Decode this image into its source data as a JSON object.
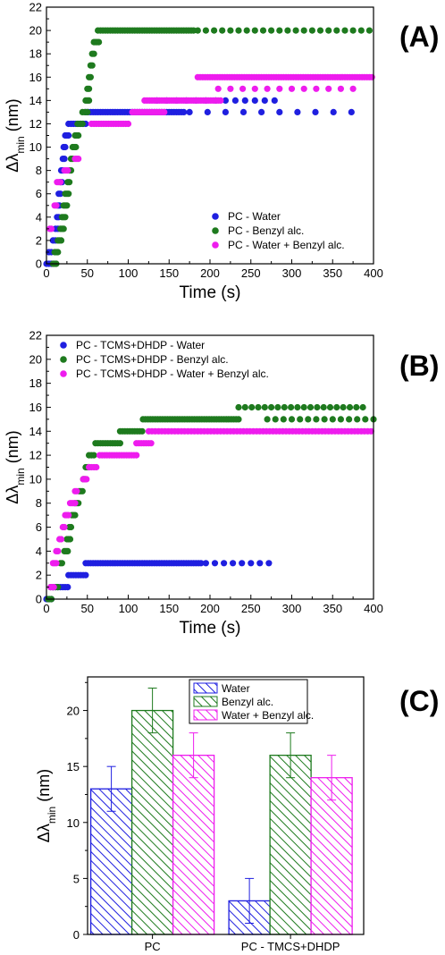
{
  "colors": {
    "water": "#1f1fe0",
    "benzyl": "#1e7a1e",
    "mix": "#ee1cee",
    "axis": "#000000"
  },
  "chart_data": [
    {
      "id": "A",
      "panel_label": "(A)",
      "type": "scatter",
      "xlabel": "Time (s)",
      "ylabel": "Δλmin (nm)",
      "xlim": [
        0,
        400
      ],
      "ylim": [
        0,
        22
      ],
      "xticks": [
        0,
        50,
        100,
        150,
        200,
        250,
        300,
        350,
        400
      ],
      "yticks": [
        0,
        2,
        4,
        6,
        8,
        10,
        12,
        14,
        16,
        18,
        20,
        22
      ],
      "legend_position": "bottom-right",
      "series": [
        {
          "name": "PC - Water",
          "color": "#1f1fe0",
          "segments": [
            {
              "y": 0,
              "x0": 0,
              "x1": 6,
              "step": 3
            },
            {
              "y": 1,
              "x0": 3,
              "x1": 8,
              "step": 3
            },
            {
              "y": 2,
              "x0": 8,
              "x1": 12,
              "step": 3
            },
            {
              "y": 3,
              "x0": 11,
              "x1": 14,
              "step": 3
            },
            {
              "y": 4,
              "x0": 13,
              "x1": 15,
              "step": 2
            },
            {
              "y": 5,
              "x0": 14,
              "x1": 16,
              "step": 2
            },
            {
              "y": 6,
              "x0": 15,
              "x1": 17,
              "step": 2
            },
            {
              "y": 7,
              "x0": 17,
              "x1": 19,
              "step": 2
            },
            {
              "y": 8,
              "x0": 18,
              "x1": 20,
              "step": 2
            },
            {
              "y": 9,
              "x0": 20,
              "x1": 22,
              "step": 2
            },
            {
              "y": 10,
              "x0": 21,
              "x1": 24,
              "step": 2
            },
            {
              "y": 11,
              "x0": 23,
              "x1": 27,
              "step": 2
            },
            {
              "y": 12,
              "x0": 27,
              "x1": 50,
              "step": 3
            },
            {
              "y": 13,
              "x0": 48,
              "x1": 170,
              "step": 3
            },
            {
              "y": 13,
              "x0": 175,
              "x1": 390,
              "step": 22
            },
            {
              "y": 14,
              "x0": 135,
              "x1": 285,
              "step": 12
            }
          ]
        },
        {
          "name": "PC - Benzyl alc.",
          "color": "#1e7a1e",
          "segments": [
            {
              "y": 0,
              "x0": 8,
              "x1": 12,
              "step": 2
            },
            {
              "y": 1,
              "x0": 10,
              "x1": 14,
              "step": 2
            },
            {
              "y": 2,
              "x0": 14,
              "x1": 18,
              "step": 2
            },
            {
              "y": 3,
              "x0": 17,
              "x1": 21,
              "step": 2
            },
            {
              "y": 4,
              "x0": 19,
              "x1": 23,
              "step": 2
            },
            {
              "y": 5,
              "x0": 21,
              "x1": 25,
              "step": 2
            },
            {
              "y": 6,
              "x0": 23,
              "x1": 27,
              "step": 2
            },
            {
              "y": 7,
              "x0": 26,
              "x1": 29,
              "step": 2
            },
            {
              "y": 8,
              "x0": 28,
              "x1": 31,
              "step": 2
            },
            {
              "y": 9,
              "x0": 30,
              "x1": 33,
              "step": 2
            },
            {
              "y": 10,
              "x0": 32,
              "x1": 36,
              "step": 2
            },
            {
              "y": 11,
              "x0": 35,
              "x1": 39,
              "step": 2
            },
            {
              "y": 12,
              "x0": 38,
              "x1": 45,
              "step": 3
            },
            {
              "y": 13,
              "x0": 44,
              "x1": 50,
              "step": 3
            },
            {
              "y": 14,
              "x0": 48,
              "x1": 52,
              "step": 2
            },
            {
              "y": 15,
              "x0": 50,
              "x1": 53,
              "step": 2
            },
            {
              "y": 16,
              "x0": 52,
              "x1": 55,
              "step": 2
            },
            {
              "y": 17,
              "x0": 54,
              "x1": 57,
              "step": 2
            },
            {
              "y": 18,
              "x0": 56,
              "x1": 59,
              "step": 2
            },
            {
              "y": 19,
              "x0": 58,
              "x1": 64,
              "step": 2
            },
            {
              "y": 20,
              "x0": 63,
              "x1": 180,
              "step": 3
            },
            {
              "y": 20,
              "x0": 185,
              "x1": 395,
              "step": 10
            }
          ]
        },
        {
          "name": "PC - Water + Benzyl alc.",
          "color": "#ee1cee",
          "segments": [
            {
              "y": 3,
              "x0": 4,
              "x1": 7,
              "step": 2
            },
            {
              "y": 5,
              "x0": 10,
              "x1": 13,
              "step": 2
            },
            {
              "y": 7,
              "x0": 13,
              "x1": 17,
              "step": 2
            },
            {
              "y": 8,
              "x0": 22,
              "x1": 26,
              "step": 2
            },
            {
              "y": 9,
              "x0": 35,
              "x1": 40,
              "step": 2
            },
            {
              "y": 12,
              "x0": 55,
              "x1": 100,
              "step": 3
            },
            {
              "y": 13,
              "x0": 105,
              "x1": 145,
              "step": 3
            },
            {
              "y": 14,
              "x0": 120,
              "x1": 215,
              "step": 3
            },
            {
              "y": 15,
              "x0": 210,
              "x1": 380,
              "step": 15
            },
            {
              "y": 16,
              "x0": 185,
              "x1": 400,
              "step": 3
            }
          ]
        }
      ]
    },
    {
      "id": "B",
      "panel_label": "(B)",
      "type": "scatter",
      "xlabel": "Time (s)",
      "ylabel": "Δλmin (nm)",
      "xlim": [
        0,
        400
      ],
      "ylim": [
        0,
        22
      ],
      "xticks": [
        0,
        50,
        100,
        150,
        200,
        250,
        300,
        350,
        400
      ],
      "yticks": [
        0,
        2,
        4,
        6,
        8,
        10,
        12,
        14,
        16,
        18,
        20,
        22
      ],
      "legend_position": "top-left",
      "series": [
        {
          "name": "PC - TCMS+DHDP - Water",
          "color": "#1f1fe0",
          "segments": [
            {
              "y": 0,
              "x0": 0,
              "x1": 8,
              "step": 3
            },
            {
              "y": 1,
              "x0": 8,
              "x1": 26,
              "step": 3
            },
            {
              "y": 2,
              "x0": 27,
              "x1": 48,
              "step": 3
            },
            {
              "y": 3,
              "x0": 48,
              "x1": 190,
              "step": 3
            },
            {
              "y": 3,
              "x0": 195,
              "x1": 280,
              "step": 11
            }
          ]
        },
        {
          "name": "PC - TCMS+DHDP - Benzyl alc.",
          "color": "#1e7a1e",
          "segments": [
            {
              "y": 0,
              "x0": 2,
              "x1": 6,
              "step": 2
            },
            {
              "y": 1,
              "x0": 5,
              "x1": 14,
              "step": 3
            },
            {
              "y": 3,
              "x0": 17,
              "x1": 20,
              "step": 2
            },
            {
              "y": 4,
              "x0": 22,
              "x1": 26,
              "step": 2
            },
            {
              "y": 5,
              "x0": 25,
              "x1": 29,
              "step": 2
            },
            {
              "y": 6,
              "x0": 28,
              "x1": 31,
              "step": 2
            },
            {
              "y": 7,
              "x0": 31,
              "x1": 35,
              "step": 2
            },
            {
              "y": 8,
              "x0": 35,
              "x1": 40,
              "step": 2
            },
            {
              "y": 9,
              "x0": 40,
              "x1": 45,
              "step": 2
            },
            {
              "y": 10,
              "x0": 45,
              "x1": 48,
              "step": 2
            },
            {
              "y": 11,
              "x0": 48,
              "x1": 52,
              "step": 2
            },
            {
              "y": 12,
              "x0": 52,
              "x1": 60,
              "step": 3
            },
            {
              "y": 13,
              "x0": 60,
              "x1": 90,
              "step": 3
            },
            {
              "y": 14,
              "x0": 90,
              "x1": 118,
              "step": 3
            },
            {
              "y": 15,
              "x0": 118,
              "x1": 235,
              "step": 3
            },
            {
              "y": 15,
              "x0": 270,
              "x1": 400,
              "step": 10
            },
            {
              "y": 16,
              "x0": 235,
              "x1": 390,
              "step": 8
            }
          ]
        },
        {
          "name": "PC - TCMS+DHDP - Water + Benzyl alc.",
          "color": "#ee1cee",
          "segments": [
            {
              "y": 1,
              "x0": 5,
              "x1": 9,
              "step": 2
            },
            {
              "y": 3,
              "x0": 8,
              "x1": 12,
              "step": 2
            },
            {
              "y": 4,
              "x0": 12,
              "x1": 15,
              "step": 2
            },
            {
              "y": 5,
              "x0": 16,
              "x1": 19,
              "step": 2
            },
            {
              "y": 6,
              "x0": 20,
              "x1": 23,
              "step": 2
            },
            {
              "y": 7,
              "x0": 23,
              "x1": 27,
              "step": 2
            },
            {
              "y": 8,
              "x0": 29,
              "x1": 35,
              "step": 2
            },
            {
              "y": 9,
              "x0": 35,
              "x1": 38,
              "step": 2
            },
            {
              "y": 10,
              "x0": 45,
              "x1": 50,
              "step": 2
            },
            {
              "y": 11,
              "x0": 52,
              "x1": 62,
              "step": 3
            },
            {
              "y": 12,
              "x0": 65,
              "x1": 110,
              "step": 3
            },
            {
              "y": 13,
              "x0": 110,
              "x1": 130,
              "step": 3
            },
            {
              "y": 14,
              "x0": 125,
              "x1": 400,
              "step": 4
            }
          ]
        }
      ]
    },
    {
      "id": "C",
      "panel_label": "(C)",
      "type": "bar",
      "ylabel": "Δλmin (nm)",
      "ylim": [
        0,
        23
      ],
      "yticks": [
        0,
        5,
        10,
        15,
        20
      ],
      "categories": [
        "PC",
        "PC - TMCS+DHDP"
      ],
      "legend_position": "top-center",
      "series": [
        {
          "name": "Water",
          "color": "#1f1fe0",
          "values": [
            13,
            3
          ],
          "errors": [
            2,
            2
          ]
        },
        {
          "name": "Benzyl alc.",
          "color": "#1e7a1e",
          "values": [
            20,
            16
          ],
          "errors": [
            2,
            2
          ]
        },
        {
          "name": "Water + Benzyl alc.",
          "color": "#ee1cee",
          "values": [
            16,
            14
          ],
          "errors": [
            2,
            2
          ]
        }
      ]
    }
  ]
}
